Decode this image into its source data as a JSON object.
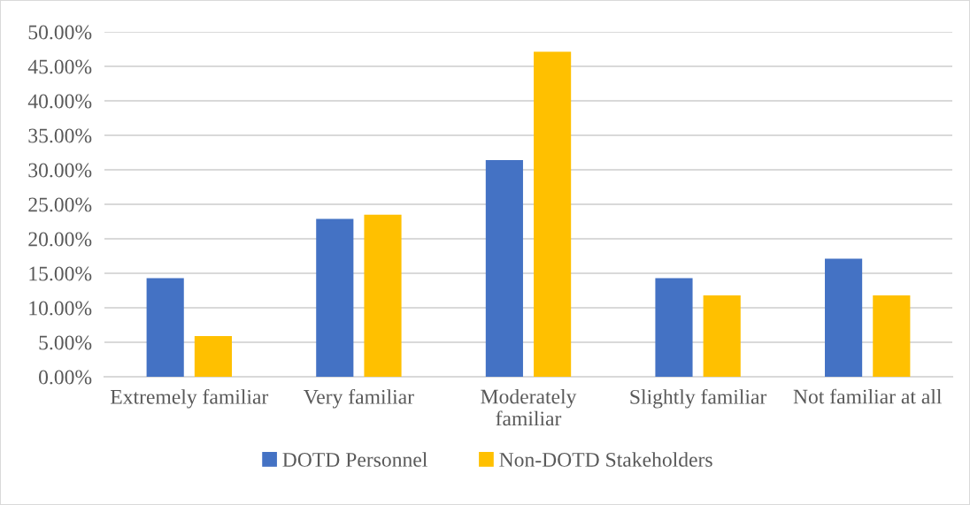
{
  "chart_data": {
    "type": "bar",
    "categories": [
      "Extremely familiar",
      "Very familiar",
      "Moderately familiar",
      "Slightly familiar",
      "Not familiar at all"
    ],
    "series": [
      {
        "name": "DOTD Personnel",
        "color": "#4472c4",
        "values": [
          14.3,
          22.9,
          31.4,
          14.3,
          17.1
        ]
      },
      {
        "name": "Non-DOTD Stakeholders",
        "color": "#ffc000",
        "values": [
          5.9,
          23.5,
          47.1,
          11.8,
          11.8
        ]
      }
    ],
    "ylim": [
      0,
      50
    ],
    "yticks": [
      {
        "value": 0,
        "label": "0.00%"
      },
      {
        "value": 5,
        "label": "5.00%"
      },
      {
        "value": 10,
        "label": "10.00%"
      },
      {
        "value": 15,
        "label": "15.00%"
      },
      {
        "value": 20,
        "label": "20.00%"
      },
      {
        "value": 25,
        "label": "25.00%"
      },
      {
        "value": 30,
        "label": "30.00%"
      },
      {
        "value": 35,
        "label": "35.00%"
      },
      {
        "value": 40,
        "label": "40.00%"
      },
      {
        "value": 45,
        "label": "45.00%"
      },
      {
        "value": 50,
        "label": "50.00%"
      }
    ],
    "grid": "y",
    "legend": "bottom"
  }
}
